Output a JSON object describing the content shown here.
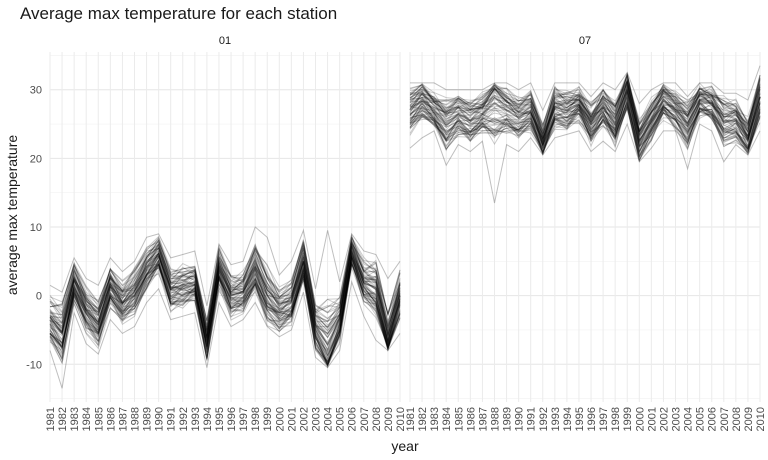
{
  "chart_data": {
    "type": "line",
    "title": "Average max temperature for each station",
    "xlabel": "year",
    "ylabel": "average max temperature",
    "xlim": [
      1981,
      2010
    ],
    "ylim": [
      -15.5,
      35.5
    ],
    "yticks": [
      -10,
      0,
      10,
      20,
      30
    ],
    "grid": true,
    "legend": "none",
    "line_color": "#000000",
    "line_opacity": 0.2,
    "panels": [
      {
        "strip_label": "01",
        "x": [
          1981,
          1982,
          1983,
          1984,
          1985,
          1986,
          1987,
          1988,
          1989,
          1990,
          1991,
          1992,
          1993,
          1994,
          1995,
          1996,
          1997,
          1998,
          1999,
          2000,
          2001,
          2002,
          2003,
          2004,
          2005,
          2006,
          2007,
          2008,
          2009,
          2010
        ],
        "mean_series": [
          -3.5,
          -5.5,
          2,
          -2,
          -4,
          1.5,
          -1,
          0.5,
          4,
          6,
          1,
          1.5,
          2,
          -6.5,
          4,
          0,
          0.5,
          4,
          0,
          -2,
          -1,
          5,
          -4.5,
          -7,
          -3.5,
          6.5,
          2,
          1,
          -6,
          0
        ],
        "min_series": [
          -8,
          -13.5,
          -2.5,
          -7,
          -8.5,
          -3.5,
          -5.5,
          -4.5,
          -1,
          1,
          -3.5,
          -3,
          -2.5,
          -10.5,
          -1,
          -4.5,
          -3.5,
          -1,
          -4.5,
          -6,
          -5,
          0.5,
          -9,
          -10.5,
          -8,
          2,
          -3,
          -6.5,
          -8,
          -5.5
        ],
        "max_series": [
          1.5,
          0.5,
          5.5,
          2.5,
          1.5,
          5.5,
          3.5,
          5,
          8.5,
          9,
          5.5,
          6,
          6.5,
          -1.5,
          7.5,
          4.5,
          5,
          10,
          8.5,
          3,
          5,
          9.5,
          1,
          9.5,
          2,
          9,
          6.5,
          6,
          2.5,
          5
        ]
      },
      {
        "strip_label": "07",
        "x": [
          1981,
          1982,
          1983,
          1984,
          1985,
          1986,
          1987,
          1988,
          1989,
          1990,
          1991,
          1992,
          1993,
          1994,
          1995,
          1996,
          1997,
          1998,
          1999,
          2000,
          2001,
          2002,
          2003,
          2004,
          2005,
          2006,
          2007,
          2008,
          2009,
          2010
        ],
        "mean_series": [
          27,
          28.5,
          27,
          25,
          26.5,
          25.5,
          26.5,
          28,
          27,
          26,
          27,
          22.5,
          27.5,
          27,
          28,
          25,
          27.5,
          25,
          30,
          22.5,
          25.5,
          28.5,
          27,
          25,
          28.5,
          28,
          25.5,
          25.5,
          23,
          29
        ],
        "min_series": [
          21.5,
          23,
          24,
          19,
          22,
          21,
          22.5,
          13.5,
          22,
          21,
          23,
          20.5,
          23,
          23.5,
          24,
          21,
          22.5,
          21,
          25,
          19.5,
          21.5,
          24,
          24,
          18.5,
          25,
          24,
          19.5,
          22,
          20.5,
          24
        ],
        "max_series": [
          31,
          31,
          31,
          30,
          30,
          30,
          30,
          31,
          31,
          30,
          31,
          27,
          31,
          31,
          31,
          29,
          31,
          30,
          32.5,
          28,
          30,
          31,
          31,
          29,
          31,
          31,
          29.5,
          29.5,
          28.5,
          33.5
        ]
      }
    ]
  }
}
